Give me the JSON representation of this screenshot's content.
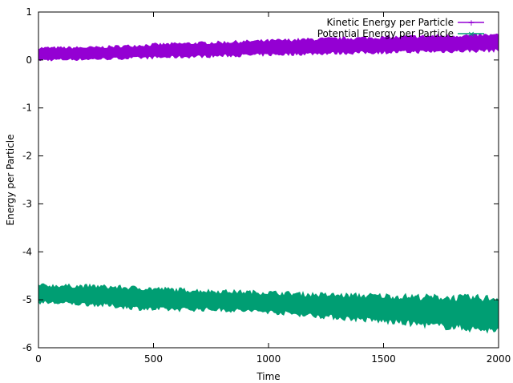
{
  "chart_data": {
    "type": "line",
    "title": "",
    "xlabel": "Time",
    "ylabel": "Energy per Particle",
    "xlim": [
      0,
      2000
    ],
    "ylim": [
      -6,
      1
    ],
    "xticks": [
      0,
      500,
      1000,
      1500,
      2000
    ],
    "yticks": [
      -6,
      -5,
      -4,
      -3,
      -2,
      -1,
      0,
      1
    ],
    "grid": false,
    "legend_position": "top-right",
    "series": [
      {
        "name": "Kinetic Energy per Particle",
        "color": "#9400d3",
        "x": [
          0,
          250,
          500,
          750,
          1000,
          1250,
          1500,
          1750,
          2000
        ],
        "low": [
          0.0,
          0.02,
          0.05,
          0.08,
          0.11,
          0.14,
          0.16,
          0.18,
          0.2
        ],
        "high": [
          0.25,
          0.26,
          0.32,
          0.36,
          0.4,
          0.44,
          0.47,
          0.5,
          0.52
        ]
      },
      {
        "name": "Potential Energy per Particle",
        "color": "#009e73",
        "x": [
          0,
          250,
          500,
          750,
          1000,
          1250,
          1500,
          1750,
          2000
        ],
        "low": [
          -5.05,
          -5.1,
          -5.2,
          -5.2,
          -5.25,
          -5.35,
          -5.45,
          -5.55,
          -5.65
        ],
        "high": [
          -4.7,
          -4.72,
          -4.77,
          -4.82,
          -4.85,
          -4.9,
          -4.92,
          -4.95,
          -4.97
        ]
      }
    ]
  }
}
